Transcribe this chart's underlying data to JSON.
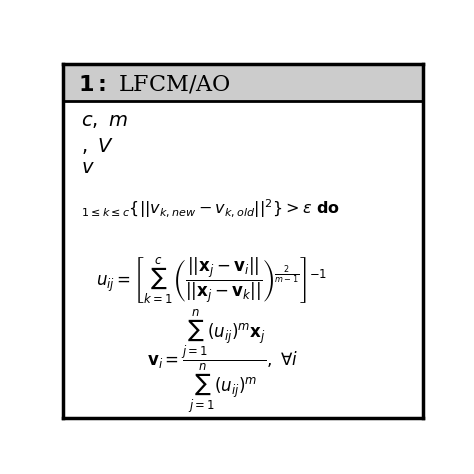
{
  "background_color": "#ffffff",
  "border_color": "#000000",
  "title_bg_color": "#cccccc",
  "text_color": "#000000",
  "figsize": [
    4.74,
    4.74
  ],
  "dpi": 100
}
